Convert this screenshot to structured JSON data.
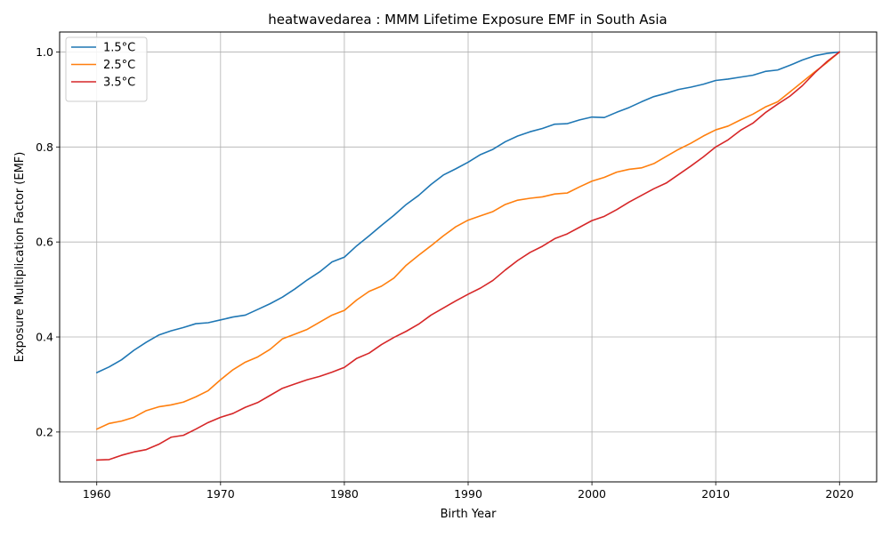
{
  "chart_data": {
    "type": "line",
    "title": "heatwavedarea : MMM Lifetime Exposure EMF in South Asia",
    "xlabel": "Birth Year",
    "ylabel": "Exposure Multiplication Factor (EMF)",
    "xlim": [
      1957,
      2023
    ],
    "ylim": [
      0.095,
      1.042
    ],
    "xticks": [
      1960,
      1970,
      1980,
      1990,
      2000,
      2010,
      2020
    ],
    "yticks": [
      0.2,
      0.4,
      0.6,
      0.8,
      1.0
    ],
    "xtick_labels": [
      "1960",
      "1970",
      "1980",
      "1990",
      "2000",
      "2010",
      "2020"
    ],
    "ytick_labels": [
      "0.2",
      "0.4",
      "0.6",
      "0.8",
      "1.0"
    ],
    "grid": true,
    "legend_position": "top-left",
    "x": [
      1960,
      1961,
      1962,
      1963,
      1964,
      1965,
      1966,
      1967,
      1968,
      1969,
      1970,
      1971,
      1972,
      1973,
      1974,
      1975,
      1976,
      1977,
      1978,
      1979,
      1980,
      1981,
      1982,
      1983,
      1984,
      1985,
      1986,
      1987,
      1988,
      1989,
      1990,
      1991,
      1992,
      1993,
      1994,
      1995,
      1996,
      1997,
      1998,
      1999,
      2000,
      2001,
      2002,
      2003,
      2004,
      2005,
      2006,
      2007,
      2008,
      2009,
      2010,
      2011,
      2012,
      2013,
      2014,
      2015,
      2016,
      2017,
      2018,
      2019,
      2020
    ],
    "series": [
      {
        "name": "1.5°C",
        "color": "#1f77b4",
        "values": [
          0.325,
          0.337,
          0.352,
          0.372,
          0.389,
          0.404,
          0.413,
          0.42,
          0.428,
          0.43,
          0.436,
          0.442,
          0.446,
          0.458,
          0.47,
          0.484,
          0.501,
          0.52,
          0.537,
          0.558,
          0.568,
          0.592,
          0.613,
          0.635,
          0.656,
          0.679,
          0.698,
          0.721,
          0.741,
          0.754,
          0.768,
          0.784,
          0.795,
          0.811,
          0.823,
          0.832,
          0.839,
          0.848,
          0.849,
          0.857,
          0.863,
          0.862,
          0.873,
          0.883,
          0.895,
          0.906,
          0.913,
          0.921,
          0.926,
          0.932,
          0.94,
          0.943,
          0.947,
          0.951,
          0.959,
          0.962,
          0.972,
          0.983,
          0.992,
          0.997,
          1.0
        ]
      },
      {
        "name": "2.5°C",
        "color": "#ff7f0e",
        "values": [
          0.206,
          0.218,
          0.223,
          0.231,
          0.245,
          0.253,
          0.257,
          0.263,
          0.274,
          0.287,
          0.31,
          0.331,
          0.347,
          0.358,
          0.374,
          0.396,
          0.406,
          0.416,
          0.431,
          0.446,
          0.456,
          0.478,
          0.496,
          0.507,
          0.524,
          0.551,
          0.572,
          0.592,
          0.613,
          0.632,
          0.646,
          0.655,
          0.664,
          0.679,
          0.688,
          0.692,
          0.695,
          0.701,
          0.703,
          0.716,
          0.728,
          0.736,
          0.747,
          0.753,
          0.756,
          0.765,
          0.78,
          0.795,
          0.808,
          0.823,
          0.836,
          0.844,
          0.857,
          0.869,
          0.884,
          0.895,
          0.916,
          0.937,
          0.958,
          0.978,
          1.0
        ]
      },
      {
        "name": "3.5°C",
        "color": "#d62728",
        "values": [
          0.141,
          0.142,
          0.151,
          0.158,
          0.163,
          0.174,
          0.189,
          0.193,
          0.206,
          0.22,
          0.231,
          0.239,
          0.252,
          0.262,
          0.277,
          0.292,
          0.301,
          0.31,
          0.317,
          0.326,
          0.336,
          0.355,
          0.366,
          0.384,
          0.399,
          0.412,
          0.427,
          0.446,
          0.461,
          0.476,
          0.49,
          0.503,
          0.519,
          0.541,
          0.561,
          0.578,
          0.591,
          0.607,
          0.617,
          0.631,
          0.645,
          0.654,
          0.668,
          0.684,
          0.698,
          0.712,
          0.724,
          0.742,
          0.76,
          0.779,
          0.8,
          0.815,
          0.835,
          0.85,
          0.872,
          0.89,
          0.907,
          0.929,
          0.956,
          0.98,
          1.0
        ]
      }
    ]
  }
}
